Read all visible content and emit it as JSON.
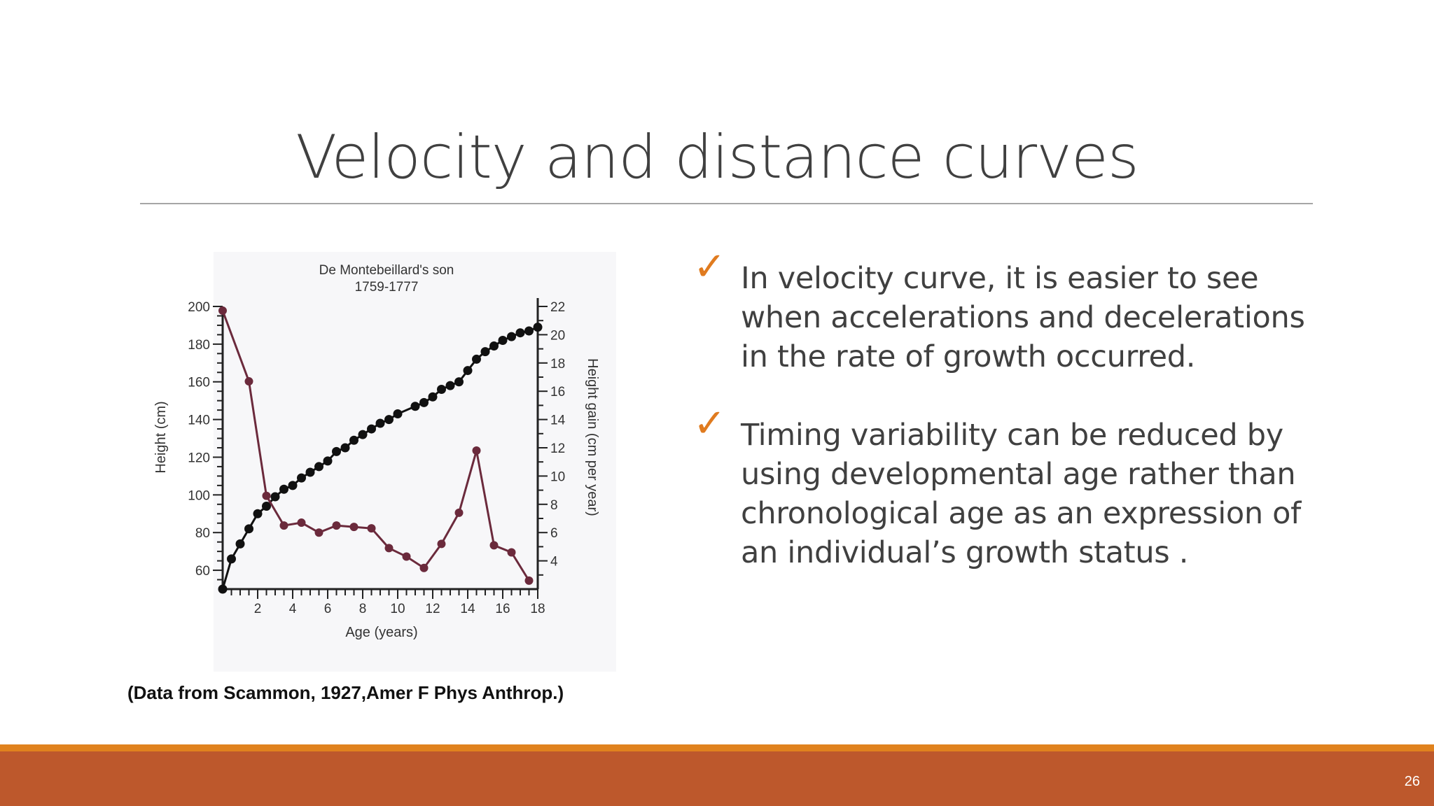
{
  "slide": {
    "title": "Velocity and distance curves",
    "caption": "(Data from Scammon, 1927,Amer F Phys Anthrop.)",
    "page_number": "26",
    "bullets": [
      {
        "icon": "check-icon",
        "text": "In velocity curve, it is easier to see when accelerations and decelerations in the rate of growth occurred."
      },
      {
        "icon": "check-icon",
        "text": "Timing variability can be reduced by using developmental age rather than chronological age as an expression of an individual’s growth status ."
      }
    ],
    "colors": {
      "title": "#404040",
      "accent": "#e07b1f",
      "footer": "#bd582c",
      "footer_stripe": "#e0821e",
      "series_height": "#111111",
      "series_gain": "#6b2a3c"
    }
  },
  "chart_data": {
    "type": "line",
    "title": "De Montebeillard's son",
    "subtitle": "1759-1777",
    "xlabel": "Age (years)",
    "ylabel_left": "Height (cm)",
    "ylabel_right": "Height gain (cm per year)",
    "xlim": [
      0,
      18
    ],
    "ylim_left": [
      50,
      200
    ],
    "ylim_right": [
      2,
      22
    ],
    "x_ticks": [
      2,
      4,
      6,
      8,
      10,
      12,
      14,
      16,
      18
    ],
    "y_left_ticks": [
      60,
      80,
      100,
      120,
      140,
      160,
      180,
      200
    ],
    "y_right_ticks": [
      4,
      6,
      8,
      10,
      12,
      14,
      16,
      18,
      20,
      22
    ],
    "grid": false,
    "series": [
      {
        "axis": "left",
        "x": [
          0,
          0.5,
          1,
          1.5,
          2,
          2.5,
          3,
          3.5,
          4,
          4.5,
          5,
          5.5,
          6,
          6.5,
          7,
          7.5,
          8,
          8.5,
          9,
          9.5,
          10,
          11,
          11.5,
          12,
          12.5,
          13,
          13.5,
          14,
          14.5,
          15,
          15.5,
          16,
          16.5,
          17,
          17.5,
          18
        ],
        "y": [
          50,
          66,
          74,
          82,
          90,
          94,
          99,
          103,
          105,
          109,
          112,
          115,
          118,
          123,
          125,
          129,
          132,
          135,
          138,
          140,
          143,
          147,
          149,
          152,
          156,
          158,
          160,
          166,
          172,
          176,
          179,
          182,
          184,
          186,
          187,
          189
        ]
      },
      {
        "axis": "right",
        "x": [
          0,
          1.5,
          2.5,
          3.5,
          4.5,
          5.5,
          6.5,
          7.5,
          8.5,
          9.5,
          10.5,
          11.5,
          12.5,
          13.5,
          14.5,
          15.5,
          16.5,
          17.5
        ],
        "y": [
          21.7,
          16.7,
          8.6,
          6.5,
          6.7,
          6.0,
          6.5,
          6.4,
          6.3,
          4.9,
          4.3,
          3.5,
          5.2,
          7.4,
          11.8,
          5.1,
          4.6,
          2.6
        ]
      }
    ]
  }
}
